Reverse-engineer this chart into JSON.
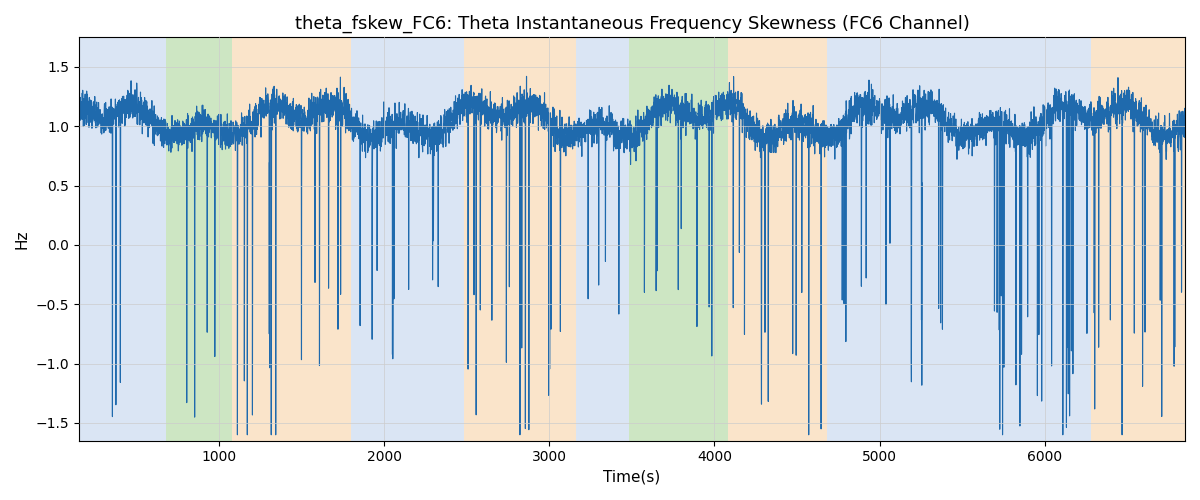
{
  "title": "theta_fskew_FC6: Theta Instantaneous Frequency Skewness (FC6 Channel)",
  "xlabel": "Time(s)",
  "ylabel": "Hz",
  "ylim": [
    -1.65,
    1.75
  ],
  "xlim": [
    150,
    6850
  ],
  "line_color": "#1f6aad",
  "line_width": 0.8,
  "bg_color": "#ffffff",
  "regions": [
    {
      "start": 150,
      "end": 680,
      "color": "#aec6e8",
      "alpha": 0.45
    },
    {
      "start": 680,
      "end": 1080,
      "color": "#90c97a",
      "alpha": 0.45
    },
    {
      "start": 1080,
      "end": 1800,
      "color": "#f5c48a",
      "alpha": 0.45
    },
    {
      "start": 1800,
      "end": 2480,
      "color": "#aec6e8",
      "alpha": 0.45
    },
    {
      "start": 2480,
      "end": 3160,
      "color": "#f5c48a",
      "alpha": 0.45
    },
    {
      "start": 3160,
      "end": 3480,
      "color": "#aec6e8",
      "alpha": 0.45
    },
    {
      "start": 3480,
      "end": 4080,
      "color": "#90c97a",
      "alpha": 0.45
    },
    {
      "start": 4080,
      "end": 4680,
      "color": "#f5c48a",
      "alpha": 0.45
    },
    {
      "start": 4680,
      "end": 6280,
      "color": "#aec6e8",
      "alpha": 0.45
    },
    {
      "start": 6280,
      "end": 6850,
      "color": "#f5c48a",
      "alpha": 0.45
    }
  ],
  "seed": 7,
  "t_start": 150,
  "t_end": 6850,
  "n_points": 6700
}
